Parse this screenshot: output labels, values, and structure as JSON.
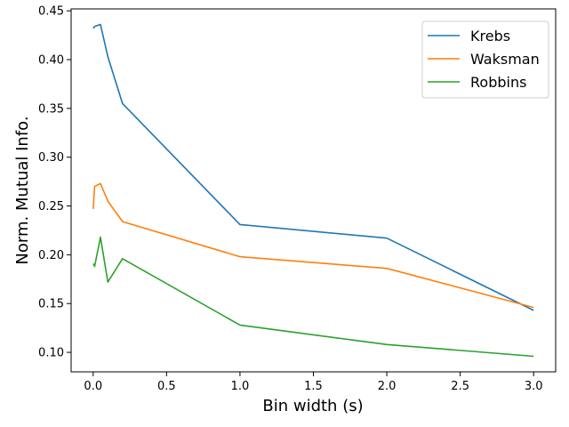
{
  "chart_data": {
    "type": "line",
    "title": "",
    "xlabel": "Bin width (s)",
    "ylabel": "Norm. Mutual Info.",
    "xlim": [
      -0.15,
      3.15
    ],
    "ylim": [
      0.08,
      0.452
    ],
    "xticks": [
      0.0,
      0.5,
      1.0,
      1.5,
      2.0,
      2.5,
      3.0
    ],
    "xtick_labels": [
      "0.0",
      "0.5",
      "1.0",
      "1.5",
      "2.0",
      "2.5",
      "3.0"
    ],
    "yticks": [
      0.1,
      0.15,
      0.2,
      0.25,
      0.3,
      0.35,
      0.4,
      0.45
    ],
    "ytick_labels": [
      "0.10",
      "0.15",
      "0.20",
      "0.25",
      "0.30",
      "0.35",
      "0.40",
      "0.45"
    ],
    "grid": false,
    "legend_position": "top-right",
    "series": [
      {
        "name": "Krebs",
        "color": "#1f77b4",
        "x": [
          0.001,
          0.01,
          0.05,
          0.1,
          0.2,
          1.0,
          2.0,
          3.0
        ],
        "y": [
          0.432,
          0.434,
          0.436,
          0.403,
          0.355,
          0.231,
          0.217,
          0.143
        ]
      },
      {
        "name": "Waksman",
        "color": "#ff7f0e",
        "x": [
          0.001,
          0.01,
          0.05,
          0.1,
          0.2,
          1.0,
          2.0,
          3.0
        ],
        "y": [
          0.247,
          0.27,
          0.273,
          0.255,
          0.234,
          0.198,
          0.186,
          0.146
        ]
      },
      {
        "name": "Robbins",
        "color": "#2ca02c",
        "x": [
          0.001,
          0.01,
          0.05,
          0.1,
          0.2,
          1.0,
          2.0,
          3.0
        ],
        "y": [
          0.191,
          0.188,
          0.218,
          0.172,
          0.196,
          0.128,
          0.108,
          0.096
        ]
      }
    ]
  }
}
